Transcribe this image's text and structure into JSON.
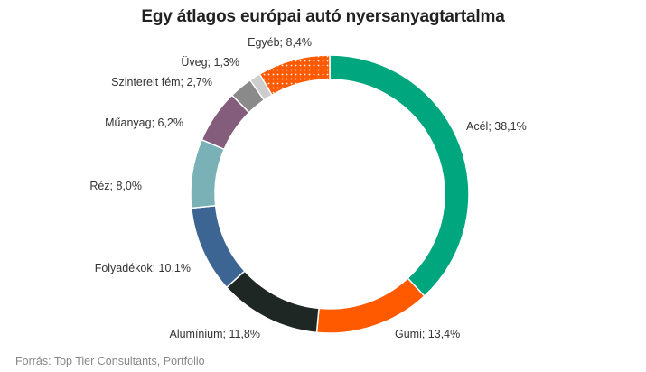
{
  "chart_data": {
    "type": "pie",
    "title": "Egy átlagos európai autó nyersanyagtartalma",
    "source": "Forrás: Top Tier Consultants, Portfolio",
    "slices": [
      {
        "name": "Acél",
        "value": 38.1,
        "label": "Acél; 38,1%",
        "color": "#00A67E"
      },
      {
        "name": "Gumi",
        "value": 13.4,
        "label": "Gumi; 13,4%",
        "color": "#FF5A00"
      },
      {
        "name": "Alumínium",
        "value": 11.8,
        "label": "Alumínium; 11,8%",
        "color": "#1E2724"
      },
      {
        "name": "Folyadékok",
        "value": 10.1,
        "label": "Folyadékok; 10,1%",
        "color": "#3C6593"
      },
      {
        "name": "Réz",
        "value": 8.0,
        "label": "Réz; 8,0%",
        "color": "#79B1B6"
      },
      {
        "name": "Műanyag",
        "value": 6.2,
        "label": "Műanyag; 6,2%",
        "color": "#845C7C"
      },
      {
        "name": "Szinterelt fém",
        "value": 2.7,
        "label": "Szinterelt fém; 2,7%",
        "color": "#8A8A8A"
      },
      {
        "name": "Üveg",
        "value": 1.3,
        "label": "Üveg; 1,3%",
        "color": "#CDCDCD"
      },
      {
        "name": "Egyéb",
        "value": 8.4,
        "label": "Egyéb; 8,4%",
        "color": "#FF5A00",
        "pattern": "dotted"
      }
    ]
  }
}
